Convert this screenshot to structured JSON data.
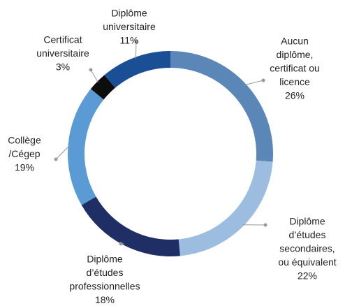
{
  "chart_data": {
    "type": "donut",
    "categories": [
      [
        "Aucun",
        "diplôme,",
        "certificat ou",
        "licence"
      ],
      [
        "Diplôme",
        "d’études",
        "secondaires,",
        "ou équivalent"
      ],
      [
        "Diplôme",
        "d’études",
        "professionnelles"
      ],
      [
        "Collège",
        "/Cégep"
      ],
      [
        "Certificat",
        "universitaire"
      ],
      [
        "Diplôme",
        "universitaire"
      ]
    ],
    "values": [
      26,
      22,
      18,
      19,
      3,
      11
    ],
    "value_labels": [
      "26%",
      "22%",
      "18%",
      "19%",
      "3%",
      "11%"
    ],
    "colors": [
      "#5b86b8",
      "#9dbde0",
      "#1f2f66",
      "#5b9bd5",
      "#0d0d0d",
      "#1a4f96"
    ]
  }
}
